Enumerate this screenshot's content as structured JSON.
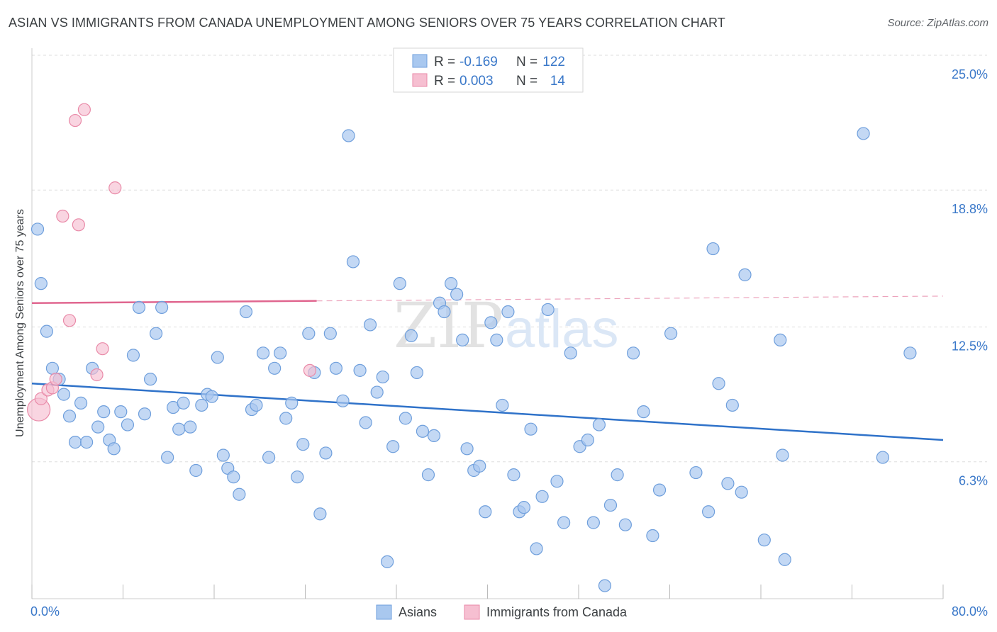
{
  "header": {
    "title": "ASIAN VS IMMIGRANTS FROM CANADA UNEMPLOYMENT AMONG SENIORS OVER 75 YEARS CORRELATION CHART",
    "source": "Source: ZipAtlas.com"
  },
  "watermark": {
    "zip": "ZIP",
    "atlas": "atlas"
  },
  "stats": {
    "r_label": "R =",
    "n_label": "N =",
    "rows": [
      {
        "r": "-0.169",
        "n": "122"
      },
      {
        "r": "0.003",
        "n": "14"
      }
    ]
  },
  "colors": {
    "asians_fill": "#a9c8ef",
    "asians_stroke": "#6f9fdc",
    "asians_line": "#2f72c9",
    "canada_fill": "#f6bfd1",
    "canada_stroke": "#e98aa8",
    "canada_line": "#e0668f",
    "accent_text": "#3a78c9",
    "grid": "#dddddd"
  },
  "chart_data": {
    "type": "scatter",
    "ylabel": "Unemployment Among Seniors over 75 years",
    "xlim": [
      0,
      80
    ],
    "ylim": [
      0,
      25
    ],
    "x_tick_labels": [
      "0.0%",
      "80.0%"
    ],
    "y_ticks": [
      {
        "value": 6.3,
        "label": "6.3%"
      },
      {
        "value": 12.5,
        "label": "12.5%"
      },
      {
        "value": 18.8,
        "label": "18.8%"
      },
      {
        "value": 25.0,
        "label": "25.0%"
      }
    ],
    "legend": [
      "Asians",
      "Immigrants from Canada"
    ],
    "series": [
      {
        "name": "Asians",
        "trend": {
          "x": [
            0,
            80
          ],
          "y": [
            9.9,
            7.3
          ]
        },
        "points": [
          [
            0.5,
            17.0
          ],
          [
            0.8,
            14.5
          ],
          [
            1.3,
            12.3
          ],
          [
            1.8,
            10.6
          ],
          [
            2.4,
            10.1
          ],
          [
            2.8,
            9.4
          ],
          [
            3.3,
            8.4
          ],
          [
            3.8,
            7.2
          ],
          [
            4.3,
            9.0
          ],
          [
            4.8,
            7.2
          ],
          [
            5.3,
            10.6
          ],
          [
            5.8,
            7.9
          ],
          [
            6.3,
            8.6
          ],
          [
            6.8,
            7.3
          ],
          [
            7.2,
            6.9
          ],
          [
            7.8,
            8.6
          ],
          [
            8.4,
            8.0
          ],
          [
            8.9,
            11.2
          ],
          [
            9.4,
            13.4
          ],
          [
            9.9,
            8.5
          ],
          [
            10.4,
            10.1
          ],
          [
            10.9,
            12.2
          ],
          [
            11.4,
            13.4
          ],
          [
            11.9,
            6.5
          ],
          [
            12.4,
            8.8
          ],
          [
            12.9,
            7.8
          ],
          [
            13.3,
            9.0
          ],
          [
            13.9,
            7.9
          ],
          [
            14.4,
            5.9
          ],
          [
            14.9,
            8.9
          ],
          [
            15.4,
            9.4
          ],
          [
            15.8,
            9.3
          ],
          [
            16.3,
            11.1
          ],
          [
            16.8,
            6.6
          ],
          [
            17.2,
            6.0
          ],
          [
            17.7,
            5.6
          ],
          [
            18.2,
            4.8
          ],
          [
            18.8,
            13.2
          ],
          [
            19.3,
            8.7
          ],
          [
            19.7,
            8.9
          ],
          [
            20.3,
            11.3
          ],
          [
            20.8,
            6.5
          ],
          [
            21.3,
            10.6
          ],
          [
            21.8,
            11.3
          ],
          [
            22.3,
            8.3
          ],
          [
            22.8,
            9.0
          ],
          [
            23.3,
            5.6
          ],
          [
            23.8,
            7.1
          ],
          [
            24.3,
            12.2
          ],
          [
            24.8,
            10.4
          ],
          [
            25.3,
            3.9
          ],
          [
            25.8,
            6.7
          ],
          [
            26.2,
            12.2
          ],
          [
            26.7,
            10.6
          ],
          [
            27.3,
            9.1
          ],
          [
            27.8,
            21.3
          ],
          [
            28.2,
            15.5
          ],
          [
            28.8,
            10.5
          ],
          [
            29.3,
            8.1
          ],
          [
            29.7,
            12.6
          ],
          [
            30.3,
            9.5
          ],
          [
            30.8,
            10.2
          ],
          [
            31.2,
            1.7
          ],
          [
            31.7,
            7.0
          ],
          [
            32.3,
            14.5
          ],
          [
            32.8,
            8.3
          ],
          [
            33.3,
            12.1
          ],
          [
            33.8,
            10.4
          ],
          [
            34.3,
            7.7
          ],
          [
            34.8,
            5.7
          ],
          [
            35.3,
            7.5
          ],
          [
            35.8,
            13.6
          ],
          [
            36.2,
            13.2
          ],
          [
            36.8,
            14.5
          ],
          [
            37.3,
            14.0
          ],
          [
            37.8,
            11.9
          ],
          [
            38.2,
            6.9
          ],
          [
            38.8,
            5.9
          ],
          [
            39.3,
            6.1
          ],
          [
            39.8,
            4.0
          ],
          [
            40.3,
            12.7
          ],
          [
            40.8,
            11.9
          ],
          [
            41.3,
            8.9
          ],
          [
            41.8,
            13.2
          ],
          [
            42.3,
            5.7
          ],
          [
            42.8,
            4.0
          ],
          [
            43.2,
            4.2
          ],
          [
            43.8,
            7.8
          ],
          [
            44.3,
            2.3
          ],
          [
            44.8,
            4.7
          ],
          [
            45.3,
            13.3
          ],
          [
            46.1,
            5.4
          ],
          [
            46.7,
            3.5
          ],
          [
            47.3,
            11.3
          ],
          [
            48.1,
            7.0
          ],
          [
            48.8,
            7.3
          ],
          [
            49.3,
            3.5
          ],
          [
            49.8,
            8.0
          ],
          [
            50.3,
            0.6
          ],
          [
            50.8,
            4.3
          ],
          [
            51.4,
            5.7
          ],
          [
            52.1,
            3.4
          ],
          [
            52.8,
            11.3
          ],
          [
            53.7,
            8.6
          ],
          [
            54.5,
            2.9
          ],
          [
            55.1,
            5.0
          ],
          [
            56.1,
            12.2
          ],
          [
            58.3,
            5.8
          ],
          [
            59.4,
            4.0
          ],
          [
            59.8,
            16.1
          ],
          [
            60.3,
            9.9
          ],
          [
            61.1,
            5.3
          ],
          [
            61.5,
            8.9
          ],
          [
            62.3,
            4.9
          ],
          [
            62.6,
            14.9
          ],
          [
            64.3,
            2.7
          ],
          [
            65.7,
            11.9
          ],
          [
            65.9,
            6.6
          ],
          [
            66.1,
            1.8
          ],
          [
            73.0,
            21.4
          ],
          [
            74.7,
            6.5
          ],
          [
            77.1,
            11.3
          ]
        ]
      },
      {
        "name": "Immigrants from Canada",
        "trend": {
          "x": [
            0,
            25
          ],
          "y": [
            13.6,
            13.7
          ],
          "dashed_to": 80
        },
        "points": [
          [
            0.6,
            8.7
          ],
          [
            0.8,
            9.2
          ],
          [
            1.4,
            9.6
          ],
          [
            1.8,
            9.7
          ],
          [
            2.1,
            10.1
          ],
          [
            2.7,
            17.6
          ],
          [
            3.3,
            12.8
          ],
          [
            3.8,
            22.0
          ],
          [
            4.1,
            17.2
          ],
          [
            4.6,
            22.5
          ],
          [
            5.7,
            10.3
          ],
          [
            6.2,
            11.5
          ],
          [
            7.3,
            18.9
          ],
          [
            24.4,
            10.5
          ]
        ]
      }
    ]
  }
}
